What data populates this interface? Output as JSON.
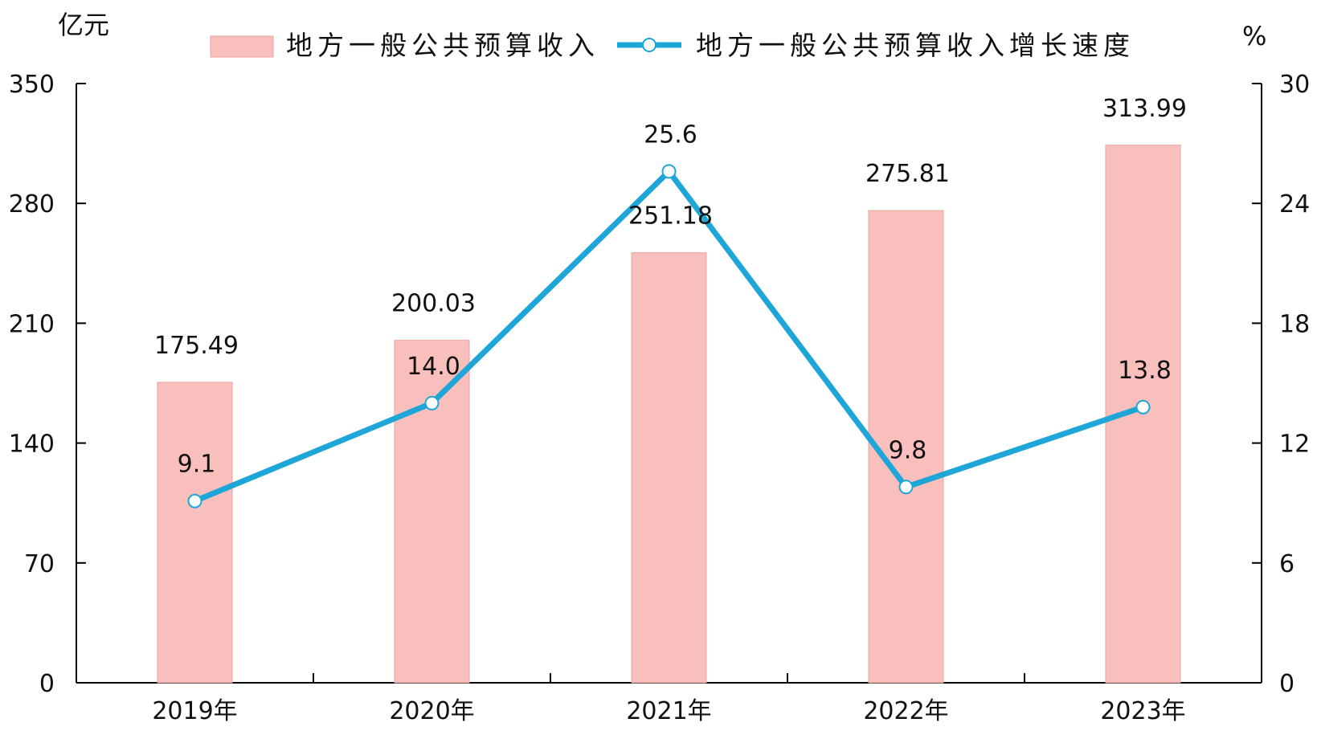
{
  "chart_data": {
    "type": "bar",
    "categories": [
      "2019年",
      "2020年",
      "2021年",
      "2022年",
      "2023年"
    ],
    "series": [
      {
        "name": "地方一般公共预算收入",
        "type": "bar",
        "axis": "left",
        "values": [
          175.49,
          200.03,
          251.18,
          275.81,
          313.99
        ],
        "labels": [
          "175.49",
          "200.03",
          "251.18",
          "275.81",
          "313.99"
        ],
        "color": "#f9bfbd",
        "border_color": "#e8a39f"
      },
      {
        "name": "地方一般公共预算收入增长速度",
        "type": "line",
        "axis": "right",
        "values": [
          9.1,
          14.0,
          25.6,
          9.8,
          13.8
        ],
        "labels": [
          "9.1",
          "14.0",
          "25.6",
          "9.8",
          "13.8"
        ],
        "color": "#1fa6d8"
      }
    ],
    "left_axis": {
      "unit": "亿元",
      "ylim": [
        0,
        350
      ],
      "ticks": [
        0,
        70,
        140,
        210,
        280,
        350
      ]
    },
    "right_axis": {
      "unit": "%",
      "ylim": [
        0,
        30
      ],
      "ticks": [
        0,
        6,
        12,
        18,
        24,
        30
      ]
    },
    "legend_position": "top-center",
    "grid": false
  }
}
